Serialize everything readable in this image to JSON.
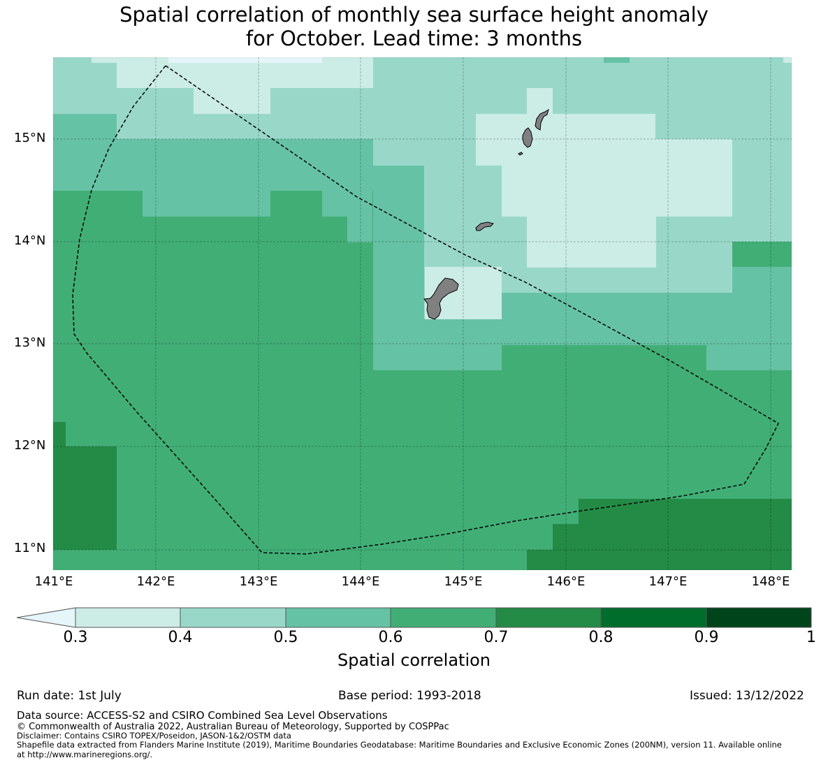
{
  "title_line1": "Spatial correlation of monthly sea surface height anomaly",
  "title_line2": "for October. Lead time: 3 months",
  "map": {
    "lon_range": [
      141.0,
      148.2
    ],
    "lat_range": [
      10.8,
      15.8
    ],
    "lat_ticks": [
      "15°N",
      "14°N",
      "13°N",
      "12°N",
      "11°N"
    ],
    "lon_ticks": [
      "141°E",
      "142°E",
      "143°E",
      "144°E",
      "145°E",
      "146°E",
      "147°E",
      "148°E"
    ],
    "land_color": "#808080",
    "land_features": [
      "Guam",
      "Rota",
      "Tinian",
      "Saipan",
      "Aguijan"
    ]
  },
  "colorbar": {
    "ticks": [
      "0.3",
      "0.4",
      "0.5",
      "0.6",
      "0.7",
      "0.8",
      "0.9",
      "1"
    ],
    "colors": [
      "#e5f5f9",
      "#ccece6",
      "#99d8c9",
      "#66c2a4",
      "#41ae76",
      "#238b45",
      "#006d2c",
      "#00441b"
    ],
    "label": "Spatial correlation"
  },
  "footer": {
    "run_date": "Run date: 1st July",
    "base_period": "Base period: 1993-2018",
    "issued": "Issued: 13/12/2022",
    "data_source": "Data source: ACCESS-S2 and CSIRO Combined Sea Level Observations",
    "copyright": "© Commonwealth of Australia 2022, Australian Bureau of Meteorology, Supported by COSPPac",
    "disclaimer": "Disclaimer: Contains CSIRO TOPEX/Poseidon, JASON-1&2/OSTM data",
    "shapefile": "Shapefile data extracted from Flanders Marine Institute (2019), Maritime Boundaries Geodatabase: Maritime Boundaries and Exclusive Economic Zones (200NM), version 11. Available online",
    "shapefile2": "at http://www.marineregions.org/."
  }
}
